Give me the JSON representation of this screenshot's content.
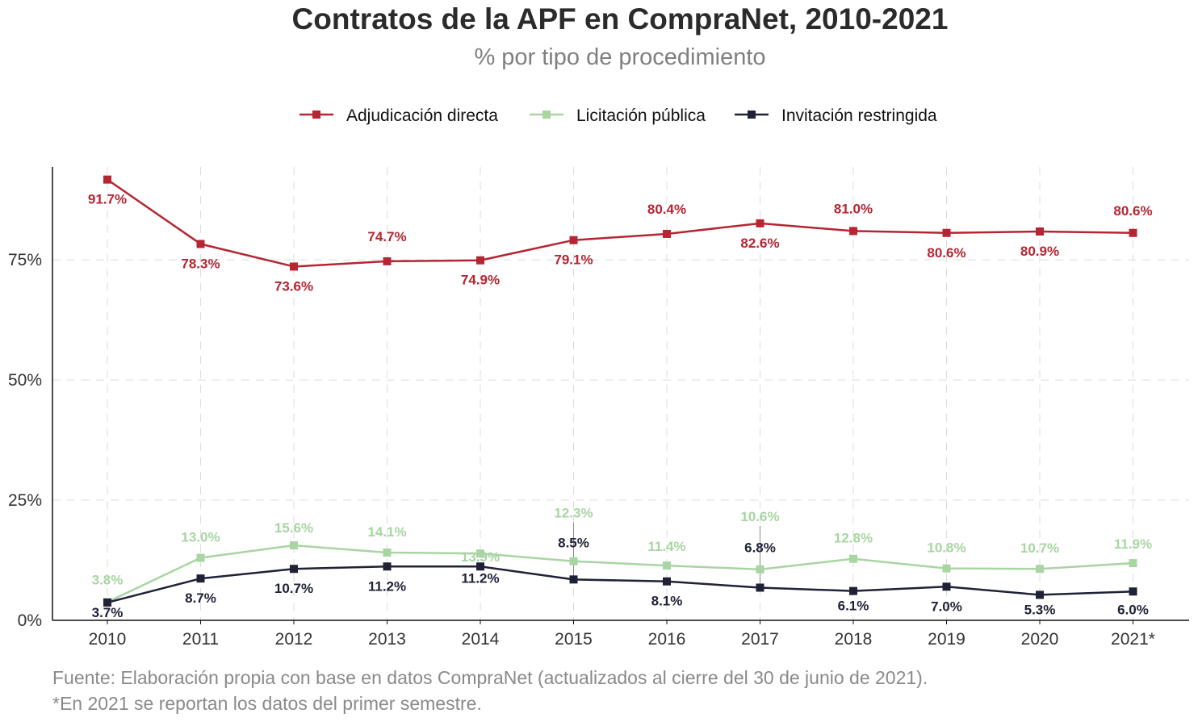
{
  "chart_data": {
    "type": "line",
    "title": "Contratos de la APF en CompraNet, 2010-2021",
    "subtitle": "% por tipo de procedimiento",
    "categories": [
      "2010",
      "2011",
      "2012",
      "2013",
      "2014",
      "2015",
      "2016",
      "2017",
      "2018",
      "2019",
      "2020",
      "2021*"
    ],
    "ylim": [
      0,
      96
    ],
    "yticks": [
      0,
      25,
      50,
      75
    ],
    "ytick_labels": [
      "0%",
      "25%",
      "50%",
      "75%"
    ],
    "grid": true,
    "legend_position": "top-center",
    "series": [
      {
        "name": "Adjudicación directa",
        "color": "#b52532",
        "values": [
          91.7,
          78.3,
          73.6,
          74.7,
          74.9,
          79.1,
          80.4,
          82.6,
          81.0,
          80.6,
          80.9,
          80.6
        ],
        "labels": [
          "91.7%",
          "78.3%",
          "73.6%",
          "74.7%",
          "74.9%",
          "79.1%",
          "80.4%",
          "82.6%",
          "81.0%",
          "80.6%",
          "80.9%",
          "80.6%"
        ]
      },
      {
        "name": "Licitación pública",
        "color": "#a8d5a2",
        "values": [
          3.8,
          13.0,
          15.6,
          14.1,
          13.9,
          12.3,
          11.4,
          10.6,
          12.8,
          10.8,
          10.7,
          11.9
        ],
        "labels": [
          "3.8%",
          "13.0%",
          "15.6%",
          "14.1%",
          "13.9%",
          "12.3%",
          "11.4%",
          "10.6%",
          "12.8%",
          "10.8%",
          "10.7%",
          "11.9%"
        ]
      },
      {
        "name": "Invitación restringida",
        "color": "#1f2136",
        "values": [
          3.7,
          8.7,
          10.7,
          11.2,
          11.2,
          8.5,
          8.1,
          6.8,
          6.1,
          7.0,
          5.3,
          6.0
        ],
        "labels": [
          "3.7%",
          "8.7%",
          "10.7%",
          "11.2%",
          "11.2%",
          "8.5%",
          "8.1%",
          "6.8%",
          "6.1%",
          "7.0%",
          "5.3%",
          "6.0%"
        ]
      }
    ],
    "caption": [
      "Fuente: Elaboración propia con base en datos CompraNet (actualizados al cierre del 30 de junio de 2021).",
      "*En 2021 se reportan los datos del primer semestre."
    ]
  }
}
